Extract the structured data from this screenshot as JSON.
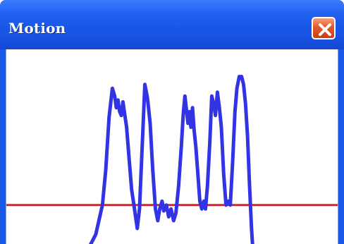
{
  "window": {
    "title": "Motion",
    "close_icon": "close-icon"
  },
  "chart_data": {
    "type": "line",
    "description_free": true,
    "xlim": [
      0,
      100
    ],
    "ylim": [
      0,
      100
    ],
    "grid": false,
    "colors": {
      "signal": "#3333e6",
      "threshold": "#e02020"
    },
    "series": [
      {
        "values": [
          [
            0,
            -5
          ],
          [
            24,
            -5
          ],
          [
            27,
            5
          ],
          [
            29,
            20
          ],
          [
            30,
            38
          ],
          [
            31,
            65
          ],
          [
            32,
            80
          ],
          [
            32.7,
            76
          ],
          [
            33.2,
            70
          ],
          [
            33.7,
            74
          ],
          [
            34.2,
            68
          ],
          [
            34.7,
            66
          ],
          [
            35.2,
            73
          ],
          [
            35.7,
            67
          ],
          [
            36.3,
            60
          ],
          [
            37,
            45
          ],
          [
            37.8,
            28
          ],
          [
            38.5,
            20
          ],
          [
            39.5,
            8
          ],
          [
            40.2,
            18
          ],
          [
            41,
            50
          ],
          [
            41.8,
            82
          ],
          [
            42.6,
            75
          ],
          [
            43.4,
            62
          ],
          [
            44.2,
            38
          ],
          [
            45,
            18
          ],
          [
            45.7,
            12
          ],
          [
            46.3,
            18
          ],
          [
            47,
            22
          ],
          [
            47.5,
            17
          ],
          [
            48.3,
            20
          ],
          [
            49,
            14
          ],
          [
            49.7,
            18
          ],
          [
            50.5,
            12
          ],
          [
            51.2,
            16
          ],
          [
            52,
            30
          ],
          [
            52.8,
            50
          ],
          [
            53.4,
            67
          ],
          [
            53.9,
            76
          ],
          [
            54.3,
            70
          ],
          [
            54.8,
            62
          ],
          [
            55.3,
            68
          ],
          [
            55.7,
            60
          ],
          [
            56.2,
            70
          ],
          [
            56.7,
            58
          ],
          [
            57.2,
            50
          ],
          [
            57.8,
            36
          ],
          [
            58.4,
            22
          ],
          [
            59,
            18
          ],
          [
            59.6,
            22
          ],
          [
            60.1,
            18
          ],
          [
            60.7,
            30
          ],
          [
            61.4,
            52
          ],
          [
            62,
            76
          ],
          [
            62.6,
            72
          ],
          [
            63.1,
            66
          ],
          [
            63.7,
            78
          ],
          [
            64.3,
            70
          ],
          [
            64.9,
            60
          ],
          [
            65.6,
            36
          ],
          [
            66.3,
            20
          ],
          [
            67,
            22
          ],
          [
            67.6,
            20
          ],
          [
            68.3,
            42
          ],
          [
            69,
            68
          ],
          [
            69.6,
            80
          ],
          [
            70.3,
            86
          ],
          [
            71,
            86
          ],
          [
            71.6,
            82
          ],
          [
            72.2,
            72
          ],
          [
            72.8,
            55
          ],
          [
            73.4,
            30
          ],
          [
            74,
            8
          ],
          [
            74.5,
            -5
          ],
          [
            100,
            -5
          ]
        ]
      }
    ],
    "threshold": {
      "y": 20
    }
  }
}
